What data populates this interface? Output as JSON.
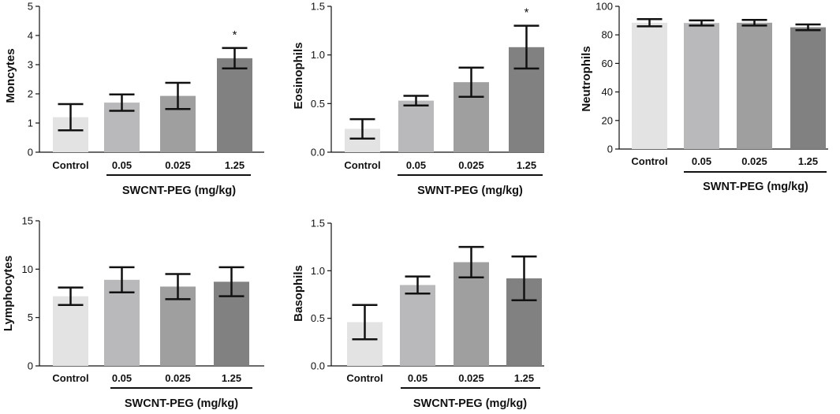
{
  "figure": {
    "categories": [
      "Control",
      "0.05",
      "0.025",
      "1.25"
    ],
    "bar_colors": [
      "#e3e3e3",
      "#b9b9bb",
      "#9f9f9f",
      "#818181"
    ],
    "axis_color": "#111111"
  },
  "chart_data": [
    {
      "type": "bar",
      "ylabel": "Moncytes",
      "group_label": "SWCNT-PEG (mg/kg)",
      "categories": [
        "Control",
        "0.05",
        "0.025",
        "1.25"
      ],
      "values": [
        1.2,
        1.7,
        1.93,
        3.22
      ],
      "errors": [
        0.45,
        0.28,
        0.45,
        0.35
      ],
      "significance": [
        "",
        "",
        "",
        "*"
      ],
      "ylim": [
        0,
        5
      ],
      "yticks": [
        "0",
        "1",
        "2",
        "3",
        "4",
        "5"
      ],
      "ytick_values": [
        0,
        1,
        2,
        3,
        4,
        5
      ]
    },
    {
      "type": "bar",
      "ylabel": "Eosinophils",
      "group_label": "SWNT-PEG (mg/kg)",
      "categories": [
        "Control",
        "0.05",
        "0.025",
        "1.25"
      ],
      "values": [
        0.24,
        0.53,
        0.72,
        1.08
      ],
      "errors": [
        0.1,
        0.05,
        0.15,
        0.22
      ],
      "significance": [
        "",
        "",
        "",
        "*"
      ],
      "ylim": [
        0,
        1.5
      ],
      "yticks": [
        "0.0",
        "0.5",
        "1.0",
        "1.5"
      ],
      "ytick_values": [
        0,
        0.5,
        1,
        1.5
      ]
    },
    {
      "type": "bar",
      "ylabel": "Neutrophils",
      "group_label": "SWNT-PEG (mg/kg)",
      "categories": [
        "Control",
        "0.05",
        "0.025",
        "1.25"
      ],
      "values": [
        88.5,
        88.3,
        88.5,
        85.3
      ],
      "errors": [
        2.5,
        1.8,
        2.0,
        2.0
      ],
      "significance": [
        "",
        "",
        "",
        ""
      ],
      "ylim": [
        0,
        100
      ],
      "yticks": [
        "0",
        "20",
        "40",
        "60",
        "80",
        "100"
      ],
      "ytick_values": [
        0,
        20,
        40,
        60,
        80,
        100
      ]
    },
    {
      "type": "bar",
      "ylabel": "Lymphocytes",
      "group_label": "SWCNT-PEG (mg/kg)",
      "categories": [
        "Control",
        "0.05",
        "0.025",
        "1.25"
      ],
      "values": [
        7.2,
        8.9,
        8.2,
        8.7
      ],
      "errors": [
        0.9,
        1.3,
        1.3,
        1.5
      ],
      "significance": [
        "",
        "",
        "",
        ""
      ],
      "ylim": [
        0,
        15
      ],
      "yticks": [
        "0",
        "5",
        "10",
        "15"
      ],
      "ytick_values": [
        0,
        5,
        10,
        15
      ]
    },
    {
      "type": "bar",
      "ylabel": "Basophils",
      "group_label": "SWCNT-PEG (mg/kg)",
      "categories": [
        "Control",
        "0.05",
        "0.025",
        "1.25"
      ],
      "values": [
        0.46,
        0.85,
        1.09,
        0.92
      ],
      "errors": [
        0.18,
        0.09,
        0.16,
        0.23
      ],
      "significance": [
        "",
        "",
        "",
        ""
      ],
      "ylim": [
        0,
        1.5
      ],
      "yticks": [
        "0.0",
        "0.5",
        "1.0",
        "1.5"
      ],
      "ytick_values": [
        0,
        0.5,
        1,
        1.5
      ]
    }
  ]
}
